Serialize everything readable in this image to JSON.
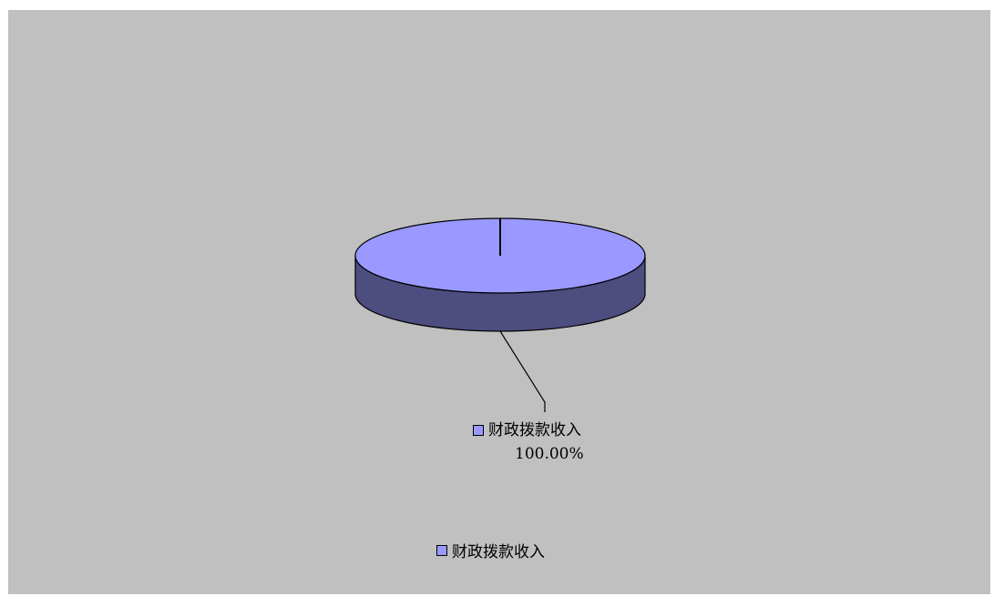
{
  "chart_data": {
    "type": "pie",
    "style": "3d",
    "slices": [
      {
        "label": "财政拨款收入",
        "value": 100.0,
        "percent_label": "100.00%",
        "color": "#9999ff",
        "side_color": "#4d4d80"
      }
    ],
    "legend": {
      "placement": "bottom",
      "entries": [
        "财政拨款收入"
      ]
    },
    "background_color": "#c0c0c0"
  }
}
